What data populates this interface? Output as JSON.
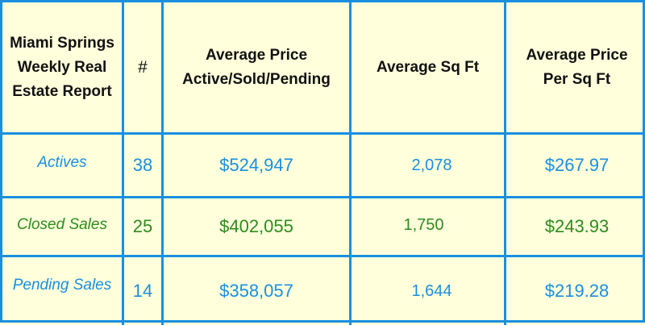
{
  "table": {
    "headers": [
      "Miami Springs Weekly Real Estate Report",
      "#",
      "Average Price Active/Sold/Pending",
      "Average Sq Ft",
      "Average Price Per Sq Ft"
    ],
    "rows": [
      {
        "label": "Actives",
        "count": "38",
        "avg_price": "$524,947",
        "avg_sqft": "2,078",
        "price_per_sqft": "$267.97",
        "color": "#1a8fe0"
      },
      {
        "label": "Closed Sales",
        "count": "25",
        "avg_price": "$402,055",
        "avg_sqft": "1,750",
        "price_per_sqft": "$243.93",
        "color": "#2e8b1f"
      },
      {
        "label": "Pending Sales",
        "count": "14",
        "avg_price": "$358,057",
        "avg_sqft": "1,644",
        "price_per_sqft": "$219.28",
        "color": "#1a8fe0"
      }
    ]
  },
  "colors": {
    "background": "#ffffdc",
    "grid_lines": "#1a8fe0",
    "header_text": "#111111"
  }
}
